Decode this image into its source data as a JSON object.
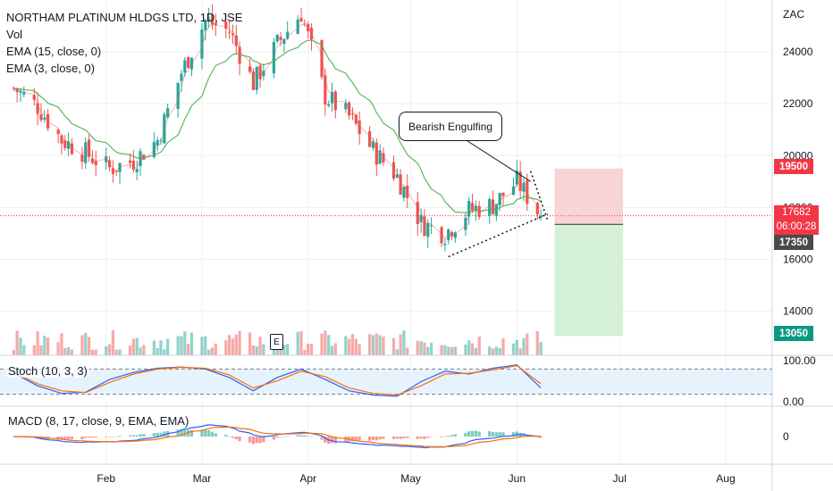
{
  "legend": {
    "title": "NORTHAM PLATINUM HLDGS LTD, 1D, JSE",
    "vol": "Vol",
    "ema15": "EMA (15, close, 0)",
    "ema3": "EMA (3, close, 0)"
  },
  "annotation": "Bearish Engulfing",
  "earnings_marker": "E",
  "currency": "ZAC",
  "price_tags": {
    "stop": "19500",
    "last": "17682",
    "countdown": "06:00:28",
    "entry": "17350",
    "target": "13050"
  },
  "colors": {
    "up": "#26a69a",
    "down": "#ef5350",
    "ema15": "#4caf50",
    "ema3": "#ef5350",
    "stop_zone": "#f7c9cc",
    "target_zone": "#cfeed0",
    "stoch_k": "#2962ff",
    "stoch_d": "#ff6d00"
  },
  "chart_data": [
    {
      "type": "candlestick",
      "title": "NORTHAM PLATINUM HLDGS LTD, 1D, JSE",
      "x_ticks": [
        "Feb",
        "Mar",
        "Apr",
        "May",
        "Jun",
        "Jul",
        "Aug"
      ],
      "y_ticks": [
        14000,
        16000,
        18000,
        20000,
        22000,
        24000
      ],
      "unit": "ZAC",
      "ylim": [
        12300,
        26000
      ],
      "close_series": [
        {
          "date": "2021-01-05",
          "close": 22600
        },
        {
          "date": "2021-01-12",
          "close": 21900
        },
        {
          "date": "2021-01-19",
          "close": 20600
        },
        {
          "date": "2021-01-26",
          "close": 20100
        },
        {
          "date": "2021-02-02",
          "close": 19500
        },
        {
          "date": "2021-02-09",
          "close": 19800
        },
        {
          "date": "2021-02-16",
          "close": 20600
        },
        {
          "date": "2021-02-23",
          "close": 23200
        },
        {
          "date": "2021-03-02",
          "close": 25200
        },
        {
          "date": "2021-03-09",
          "close": 24800
        },
        {
          "date": "2021-03-16",
          "close": 22800
        },
        {
          "date": "2021-03-23",
          "close": 24300
        },
        {
          "date": "2021-03-30",
          "close": 25500
        },
        {
          "date": "2021-04-06",
          "close": 22300
        },
        {
          "date": "2021-04-13",
          "close": 21500
        },
        {
          "date": "2021-04-20",
          "close": 20200
        },
        {
          "date": "2021-04-27",
          "close": 19200
        },
        {
          "date": "2021-05-04",
          "close": 17400
        },
        {
          "date": "2021-05-11",
          "close": 17000
        },
        {
          "date": "2021-05-18",
          "close": 17900
        },
        {
          "date": "2021-05-25",
          "close": 18100
        },
        {
          "date": "2021-06-01",
          "close": 19000
        },
        {
          "date": "2021-06-08",
          "close": 17682
        }
      ],
      "trade_zones": {
        "stop": 19500,
        "entry": 17350,
        "target": 13050,
        "last": 17682
      },
      "trendline": {
        "from": {
          "date": "2021-05-12",
          "price": 16100
        },
        "to": {
          "date": "2021-06-10",
          "price": 17750
        }
      }
    },
    {
      "type": "bar",
      "title": "Vol",
      "x_ticks": [
        "Feb",
        "Mar",
        "Apr",
        "May",
        "Jun"
      ]
    },
    {
      "type": "line",
      "title": "Stoch (10, 3, 3)",
      "bands": [
        80,
        20
      ],
      "y_ticks": [
        0,
        100
      ],
      "y_tick_labels": [
        "0.00",
        "100.00"
      ],
      "series": [
        {
          "values": [
            70,
            40,
            22,
            25,
            55,
            72,
            82,
            85,
            80,
            60,
            28,
            60,
            80,
            55,
            28,
            18,
            15,
            50,
            75,
            68,
            82,
            90,
            35
          ]
        },
        {
          "values": [
            72,
            45,
            28,
            24,
            48,
            68,
            80,
            84,
            82,
            66,
            35,
            52,
            75,
            62,
            35,
            22,
            18,
            40,
            68,
            70,
            78,
            88,
            45
          ]
        }
      ]
    },
    {
      "type": "line",
      "title": "MACD (8, 17, close, 9, EMA, EMA)",
      "y_ticks": [
        0
      ],
      "y_tick_labels": [
        "0"
      ]
    }
  ]
}
